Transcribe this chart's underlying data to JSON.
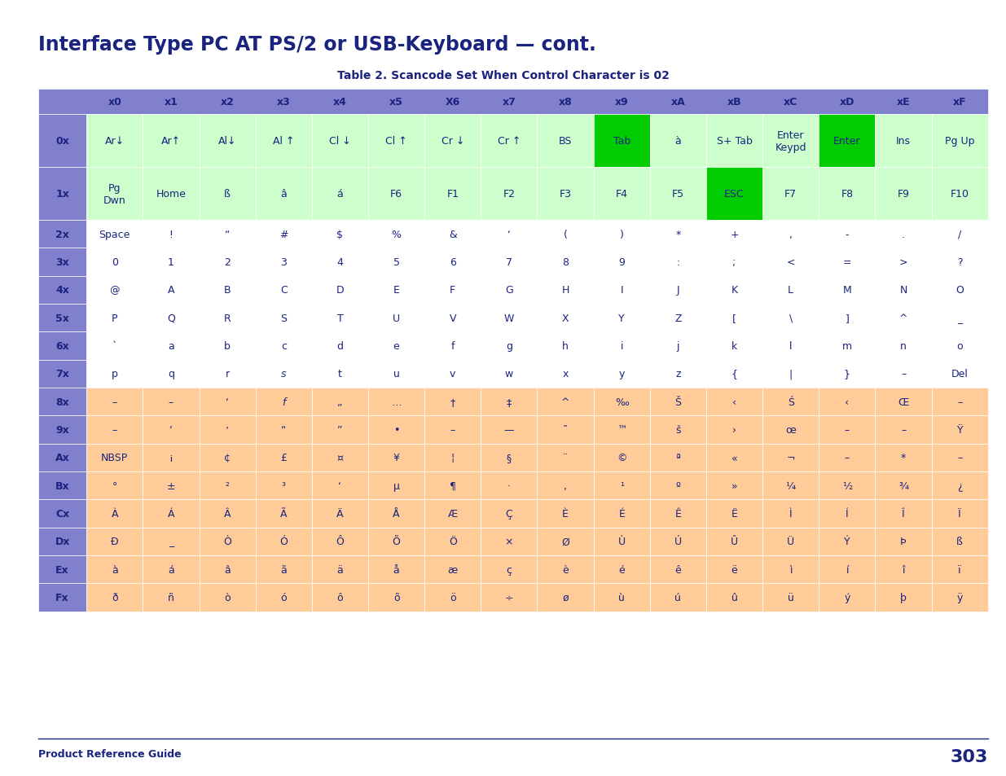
{
  "title": "Interface Type PC AT PS/2 or USB-Keyboard — cont.",
  "subtitle": "Table 2. Scancode Set When Control Character is 02",
  "title_color": "#1a237e",
  "subtitle_color": "#1a237e",
  "header_bg": "#8080cc",
  "row_label_bg": "#8080cc",
  "white_bg": "#ffffff",
  "green_light_bg": "#ccffcc",
  "green_bright": "#00cc00",
  "orange_bg": "#ffcc99",
  "cell_text_color": "#1a237e",
  "footer_text": "Product Reference Guide",
  "footer_page": "303",
  "col_headers": [
    "x0",
    "x1",
    "x2",
    "x3",
    "x4",
    "x5",
    "X6",
    "x7",
    "x8",
    "x9",
    "xA",
    "xB",
    "xC",
    "xD",
    "xE",
    "xF"
  ],
  "rows": [
    {
      "label": "0x",
      "cells": [
        "Ar↓",
        "Ar↑",
        "Al↓",
        "Al ↑",
        "Cl ↓",
        "Cl ↑",
        "Cr ↓",
        "Cr ↑",
        "BS",
        "Tab",
        "à",
        "S+ Tab",
        "Enter\nKeypd",
        "Enter",
        "Ins",
        "Pg Up"
      ],
      "bg": "green_light",
      "special_cells": {
        "9": "green_bright",
        "13": "green_bright"
      }
    },
    {
      "label": "1x",
      "cells": [
        "Pg\nDwn",
        "Home",
        "ß",
        "â",
        "á",
        "F6",
        "F1",
        "F2",
        "F3",
        "F4",
        "F5",
        "ESC",
        "F7",
        "F8",
        "F9",
        "F10"
      ],
      "bg": "green_light",
      "special_cells": {
        "11": "green_bright"
      }
    },
    {
      "label": "2x",
      "cells": [
        "Space",
        "!",
        "“",
        "#",
        "$",
        "%",
        "&",
        "‘",
        "(",
        ")",
        "*",
        "+",
        ",",
        "-",
        ".",
        "/"
      ],
      "bg": "white",
      "special_cells": {}
    },
    {
      "label": "3x",
      "cells": [
        "0",
        "1",
        "2",
        "3",
        "4",
        "5",
        "6",
        "7",
        "8",
        "9",
        ":",
        ";",
        "<",
        "=",
        ">",
        "?"
      ],
      "bg": "white",
      "special_cells": {}
    },
    {
      "label": "4x",
      "cells": [
        "@",
        "A",
        "B",
        "C",
        "D",
        "E",
        "F",
        "G",
        "H",
        "I",
        "J",
        "K",
        "L",
        "M",
        "N",
        "O"
      ],
      "bg": "white",
      "special_cells": {}
    },
    {
      "label": "5x",
      "cells": [
        "P",
        "Q",
        "R",
        "S",
        "T",
        "U",
        "V",
        "W",
        "X",
        "Y",
        "Z",
        "[",
        "\\",
        "]",
        "^",
        "_"
      ],
      "bg": "white",
      "special_cells": {}
    },
    {
      "label": "6x",
      "cells": [
        "`",
        "a",
        "b",
        "c",
        "d",
        "e",
        "f",
        "g",
        "h",
        "i",
        "j",
        "k",
        "l",
        "m",
        "n",
        "o"
      ],
      "bg": "white",
      "special_cells": {}
    },
    {
      "label": "7x",
      "cells": [
        "p",
        "q",
        "r",
        "s",
        "t",
        "u",
        "v",
        "w",
        "x",
        "y",
        "z",
        "{",
        "|",
        "}",
        "–",
        "Del"
      ],
      "bg": "white",
      "special_cells": {}
    },
    {
      "label": "8x",
      "cells": [
        "–",
        "–",
        "‘",
        "f",
        "„",
        "…",
        "†",
        "‡",
        "^",
        "‰",
        "Š",
        "‹",
        "Ś",
        "‹",
        "Œ",
        "–"
      ],
      "bg": "orange",
      "special_cells": {}
    },
    {
      "label": "9x",
      "cells": [
        "–",
        "‘",
        "’",
        "“",
        "”",
        "•",
        "–",
        "—",
        "˜",
        "™",
        "š",
        "›",
        "œ",
        "–",
        "–",
        "Ÿ"
      ],
      "bg": "orange",
      "special_cells": {}
    },
    {
      "label": "Ax",
      "cells": [
        "NBSP",
        "¡",
        "¢",
        "£",
        "¤",
        "¥",
        "¦",
        "§",
        "¨",
        "©",
        "ª",
        "«",
        "¬",
        "–",
        "*",
        "–"
      ],
      "bg": "orange",
      "special_cells": {}
    },
    {
      "label": "Bx",
      "cells": [
        "°",
        "±",
        "²",
        "³",
        "‘",
        "µ",
        "¶",
        "·",
        ",",
        "¹",
        "º",
        "»",
        "¼",
        "½",
        "¾",
        "¿"
      ],
      "bg": "orange",
      "special_cells": {}
    },
    {
      "label": "Cx",
      "cells": [
        "À",
        "Á",
        "Â",
        "Ã",
        "Ä",
        "Å",
        "Æ",
        "Ç",
        "È",
        "É",
        "Ê",
        "Ë",
        "Ì",
        "Í",
        "Î",
        "Ï"
      ],
      "bg": "orange",
      "special_cells": {}
    },
    {
      "label": "Dx",
      "cells": [
        "Ð",
        "_",
        "Ò",
        "Ó",
        "Ô",
        "Õ",
        "Ö",
        "×",
        "Ø",
        "Ù",
        "Ú",
        "Û",
        "Ü",
        "Ý",
        "Þ",
        "ß"
      ],
      "bg": "orange",
      "special_cells": {}
    },
    {
      "label": "Ex",
      "cells": [
        "à",
        "á",
        "â",
        "ã",
        "ä",
        "å",
        "æ",
        "ç",
        "è",
        "é",
        "ê",
        "ë",
        "ì",
        "í",
        "î",
        "ï"
      ],
      "bg": "orange",
      "special_cells": {}
    },
    {
      "label": "Fx",
      "cells": [
        "ð",
        "ñ",
        "ò",
        "ó",
        "ô",
        "õ",
        "ö",
        "÷",
        "ø",
        "ù",
        "ú",
        "û",
        "ü",
        "ý",
        "þ",
        "ÿ"
      ],
      "bg": "orange",
      "special_cells": {}
    }
  ]
}
